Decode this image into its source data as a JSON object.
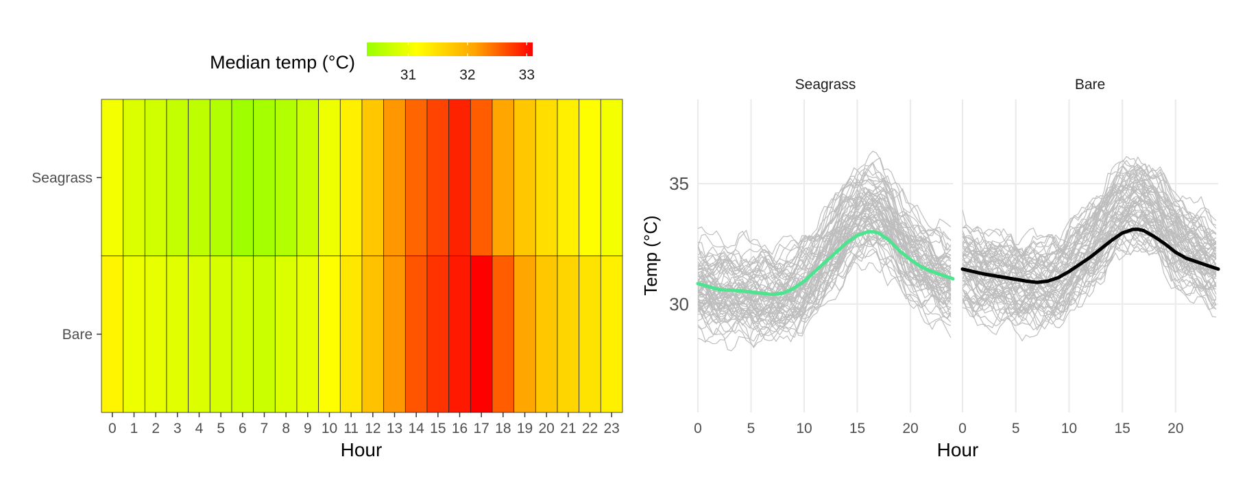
{
  "chart_data": [
    {
      "type": "heatmap",
      "title": "",
      "xlabel": "Hour",
      "ylabel": "",
      "x_categories": [
        "0",
        "1",
        "2",
        "3",
        "4",
        "5",
        "6",
        "7",
        "8",
        "9",
        "10",
        "11",
        "12",
        "13",
        "14",
        "15",
        "16",
        "17",
        "18",
        "19",
        "20",
        "21",
        "22",
        "23"
      ],
      "y_categories": [
        "Seagrass",
        "Bare"
      ],
      "legend": {
        "title": "Median temp (°C)",
        "ticks": [
          31,
          32,
          33
        ],
        "range": [
          30.3,
          33.1
        ],
        "colors": [
          "#99ff00",
          "#ffff00",
          "#ffa500",
          "#ff0000"
        ],
        "placement": "top"
      },
      "values": {
        "Seagrass": [
          31.05,
          30.85,
          30.75,
          30.65,
          30.6,
          30.5,
          30.35,
          30.4,
          30.5,
          30.7,
          31.0,
          31.3,
          31.75,
          32.2,
          32.5,
          32.7,
          32.9,
          32.55,
          32.1,
          31.75,
          31.5,
          31.3,
          31.15,
          31.05
        ],
        "Bare": [
          31.25,
          31.0,
          30.95,
          30.9,
          30.85,
          30.8,
          30.75,
          30.7,
          30.85,
          30.95,
          31.15,
          31.4,
          31.8,
          32.2,
          32.6,
          32.8,
          32.95,
          33.1,
          32.55,
          32.1,
          31.75,
          31.6,
          31.45,
          31.3
        ]
      }
    },
    {
      "type": "line",
      "title": "",
      "xlabel": "Hour",
      "ylabel": "Temp (°C)",
      "xlim": [
        0,
        24
      ],
      "ylim": [
        25.5,
        38.5
      ],
      "xticks": [
        0,
        5,
        10,
        15,
        20
      ],
      "yticks": [
        30,
        35
      ],
      "grid": true,
      "panels": [
        {
          "label": "Seagrass",
          "smooth_color": "#4ee38e",
          "smooth": {
            "x": [
              0,
              2,
              4,
              6,
              7,
              8,
              9,
              10,
              11,
              12,
              13,
              14,
              15,
              16,
              16.5,
              17,
              18,
              19,
              20,
              21,
              22,
              23,
              24
            ],
            "y": [
              30.85,
              30.6,
              30.55,
              30.45,
              30.4,
              30.45,
              30.65,
              30.95,
              31.35,
              31.75,
              32.15,
              32.55,
              32.85,
              33.0,
              33.0,
              32.95,
              32.65,
              32.2,
              31.85,
              31.55,
              31.35,
              31.2,
              31.05
            ]
          }
        },
        {
          "label": "Bare",
          "smooth_color": "#000000",
          "smooth": {
            "x": [
              0,
              2,
              4,
              6,
              7,
              8,
              9,
              10,
              11,
              12,
              13,
              14,
              15,
              16,
              16.5,
              17,
              18,
              19,
              20,
              21,
              22,
              23,
              24
            ],
            "y": [
              31.45,
              31.25,
              31.1,
              30.95,
              30.9,
              30.95,
              31.1,
              31.35,
              31.65,
              31.95,
              32.3,
              32.65,
              32.95,
              33.1,
              33.1,
              33.05,
              32.8,
              32.5,
              32.15,
              31.9,
              31.75,
              31.6,
              31.45
            ]
          }
        }
      ]
    }
  ]
}
